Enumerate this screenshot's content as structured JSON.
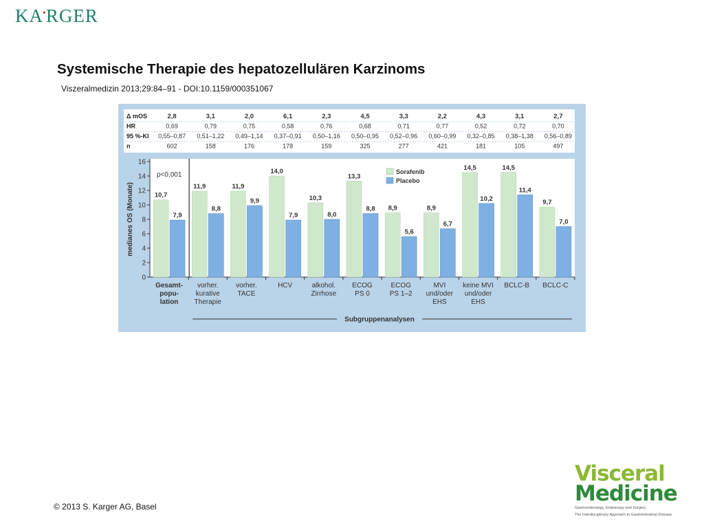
{
  "header": {
    "publisher_logo": "KARGER",
    "title": "Systemische Therapie des hepatozellulären Karzinoms",
    "citation": "Viszeralmedizin 2013;29:84–91 -  DOI:10.1159/000351067"
  },
  "footer": {
    "copyright": "© 2013 S. Karger AG, Basel",
    "journal_logo_line1": "Visceral",
    "journal_logo_line2": "Medicine",
    "journal_logo_tagline1": "Gastroenterology, Endoscopy and Surgery",
    "journal_logo_tagline2": "The Interdisciplinary Approach to Gastrointestinal Disease"
  },
  "colors": {
    "sorafenib": "#cfe8cc",
    "placebo": "#7fb0e3",
    "figure_background": "#b9d3e9",
    "plot_background": "#ffffff",
    "brand_green": "#1f7f6c"
  },
  "chart_data": {
    "type": "bar",
    "ylabel": "medianes OS (Monate)",
    "xlabel": "Subgruppenanalysen",
    "ylim": [
      0,
      16
    ],
    "yticks": [
      "0",
      "2",
      "4",
      "6",
      "8",
      "10",
      "12",
      "14",
      "16"
    ],
    "pvalue": "p<0,001",
    "legend_position": "top-right",
    "categories": [
      [
        "Gesamt-",
        "popu-",
        "lation"
      ],
      [
        "vorher.",
        "kurative",
        "Therapie"
      ],
      [
        "vorher.",
        "TACE"
      ],
      [
        "HCV"
      ],
      [
        "alkohol.",
        "Zirrhose"
      ],
      [
        "ECOG",
        "PS 0"
      ],
      [
        "ECOG",
        "PS 1–2"
      ],
      [
        "MVI",
        "und/oder",
        "EHS"
      ],
      [
        "keine MVI",
        "und/oder",
        "EHS"
      ],
      [
        "BCLC-B"
      ],
      [
        "BCLC-C"
      ]
    ],
    "series": [
      {
        "name": "Sorafenib",
        "values": [
          10.7,
          11.9,
          11.9,
          14.0,
          10.3,
          13.3,
          8.9,
          8.9,
          14.5,
          14.5,
          9.7
        ],
        "labels": [
          "10,7",
          "11,9",
          "11,9",
          "14,0",
          "10,3",
          "13,3",
          "8,9",
          "8,9",
          "14,5",
          "14,5",
          "9,7"
        ]
      },
      {
        "name": "Placebo",
        "values": [
          7.9,
          8.8,
          9.9,
          7.9,
          8.0,
          8.8,
          5.6,
          6.7,
          10.2,
          11.4,
          7.0
        ],
        "labels": [
          "7,9",
          "8,8",
          "9,9",
          "7,9",
          "8,0",
          "8,8",
          "5,6",
          "6,7",
          "10,2",
          "11,4",
          "7,0"
        ]
      }
    ],
    "table": {
      "row_labels": [
        "Δ mOS",
        "HR",
        "95 %-KI",
        "n"
      ],
      "rows": [
        [
          "2,8",
          "3,1",
          "2,0",
          "6,1",
          "2,3",
          "4,5",
          "3,3",
          "2,2",
          "4,3",
          "3,1",
          "2,7"
        ],
        [
          "0,69",
          "0,79",
          "0,75",
          "0,58",
          "0,76",
          "0,68",
          "0,71",
          "0,77",
          "0,52",
          "0,72",
          "0,70"
        ],
        [
          "0,55–0,87",
          "0,51–1,22",
          "0,49–1,14",
          "0,37–0,91",
          "0,50–1,16",
          "0,50–0,95",
          "0,52–0,96",
          "0,60–0,99",
          "0,32–0,85",
          "0,38–1,38",
          "0,56–0,89"
        ],
        [
          "602",
          "158",
          "176",
          "178",
          "159",
          "325",
          "277",
          "421",
          "181",
          "105",
          "497"
        ]
      ]
    }
  }
}
